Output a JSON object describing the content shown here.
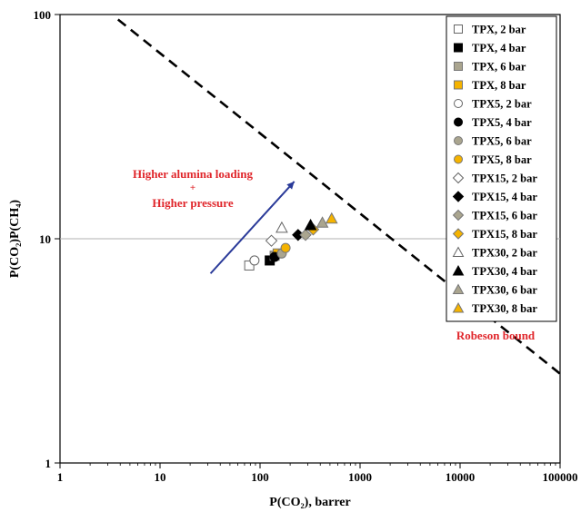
{
  "chart_data": {
    "type": "scatter",
    "xscale": "log",
    "yscale": "log",
    "xlim": [
      1,
      100000
    ],
    "ylim": [
      1,
      100
    ],
    "xlabel": "P(CO₂), barrer",
    "ylabel": "P(CO₂)P(CH₄)",
    "xticks": [
      "1",
      "10",
      "100",
      "1000",
      "10000",
      "100000"
    ],
    "yticks": [
      "1",
      "10",
      "100"
    ],
    "grid": "horizontal line at 10",
    "legend_position": "top-right",
    "colors": {
      "white": "#ffffff",
      "black": "#000000",
      "gray": "#aaa58f",
      "orange": "#f5b300",
      "red_text": "#e0262b",
      "arrow": "#2a3a99"
    },
    "series": [
      {
        "name": "TPX, 2 bar",
        "marker": "square",
        "fill": "white",
        "x": [
          78
        ],
        "y": [
          7.6
        ]
      },
      {
        "name": "TPX, 4 bar",
        "marker": "square",
        "fill": "black",
        "x": [
          125
        ],
        "y": [
          8.0
        ]
      },
      {
        "name": "TPX, 6 bar",
        "marker": "square",
        "fill": "gray",
        "x": [
          140
        ],
        "y": [
          8.4
        ]
      },
      {
        "name": "TPX, 8 bar",
        "marker": "square",
        "fill": "orange",
        "x": [
          150
        ],
        "y": [
          8.6
        ]
      },
      {
        "name": "TPX5, 2 bar",
        "marker": "circle",
        "fill": "white",
        "x": [
          88
        ],
        "y": [
          8.0
        ]
      },
      {
        "name": "TPX5, 4 bar",
        "marker": "circle",
        "fill": "black",
        "x": [
          140
        ],
        "y": [
          8.3
        ]
      },
      {
        "name": "TPX5, 6 bar",
        "marker": "circle",
        "fill": "gray",
        "x": [
          165
        ],
        "y": [
          8.6
        ]
      },
      {
        "name": "TPX5, 8 bar",
        "marker": "circle",
        "fill": "orange",
        "x": [
          180
        ],
        "y": [
          9.1
        ]
      },
      {
        "name": "TPX15, 2 bar",
        "marker": "diamond",
        "fill": "white",
        "x": [
          130
        ],
        "y": [
          9.8
        ]
      },
      {
        "name": "TPX15, 4 bar",
        "marker": "diamond",
        "fill": "black",
        "x": [
          240
        ],
        "y": [
          10.4
        ]
      },
      {
        "name": "TPX15, 6 bar",
        "marker": "diamond",
        "fill": "gray",
        "x": [
          285
        ],
        "y": [
          10.4
        ]
      },
      {
        "name": "TPX15, 8 bar",
        "marker": "diamond",
        "fill": "orange",
        "x": [
          340
        ],
        "y": [
          11.0
        ]
      },
      {
        "name": "TPX30, 2 bar",
        "marker": "triangle",
        "fill": "white",
        "x": [
          165
        ],
        "y": [
          11.2
        ]
      },
      {
        "name": "TPX30, 4 bar",
        "marker": "triangle",
        "fill": "black",
        "x": [
          320
        ],
        "y": [
          11.5
        ]
      },
      {
        "name": "TPX30, 6 bar",
        "marker": "triangle",
        "fill": "gray",
        "x": [
          420
        ],
        "y": [
          11.8
        ]
      },
      {
        "name": "TPX30, 8 bar",
        "marker": "triangle",
        "fill": "orange",
        "x": [
          520
        ],
        "y": [
          12.3
        ]
      }
    ],
    "robeson_bound": {
      "label": "Robeson bound",
      "x": [
        3.8,
        100000
      ],
      "y": [
        95,
        2.5
      ]
    },
    "arrow": {
      "from": [
        32,
        7.0
      ],
      "to": [
        220,
        18
      ]
    },
    "annotation": {
      "line1": "Higher alumina loading",
      "line2": "+",
      "line3": "Higher pressure"
    }
  }
}
